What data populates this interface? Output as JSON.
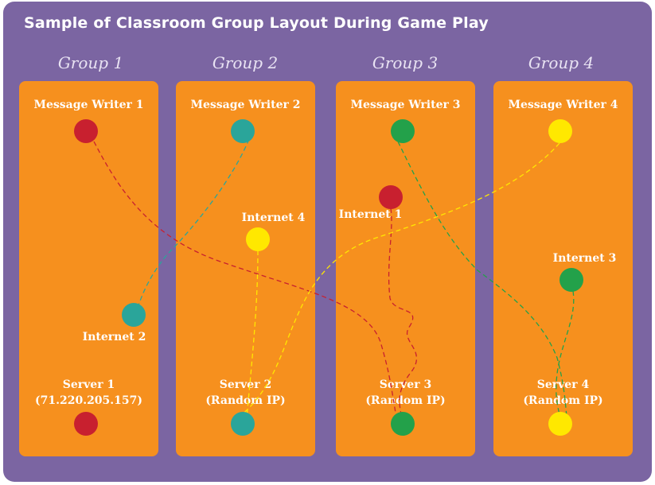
{
  "title": "Sample of Classroom Group Layout During Game Play",
  "colors": {
    "background": "#7b65a2",
    "panel": "#f6901e",
    "group1": "#c8202f",
    "group2": "#2aa59a",
    "group3": "#23a14a",
    "group4": "#ffe800"
  },
  "groups": [
    {
      "label": "Group 1",
      "writer": "Message Writer 1",
      "server": "Server 1",
      "server_ip": "(71.220.205.157)"
    },
    {
      "label": "Group 2",
      "writer": "Message Writer 2",
      "server": "Server 2",
      "server_ip": "(Random IP)"
    },
    {
      "label": "Group 3",
      "writer": "Message Writer 3",
      "server": "Server 3",
      "server_ip": "(Random IP)"
    },
    {
      "label": "Group 4",
      "writer": "Message Writer 4",
      "server": "Server 4",
      "server_ip": "(Random IP)"
    }
  ],
  "internet": [
    "Internet 1",
    "Internet 2",
    "Internet 3",
    "Internet 4"
  ]
}
